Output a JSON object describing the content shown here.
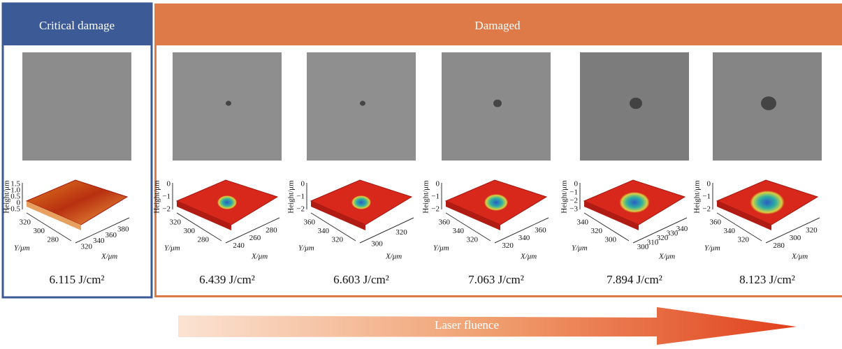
{
  "header": {
    "critical": "Critical damage",
    "damaged": "Damaged"
  },
  "arrow_label": "Laser fluence",
  "axis_labels": {
    "height": "Height/μm",
    "y": "Y/μm",
    "x": "X/μm"
  },
  "panels": [
    {
      "fluence": "6.115 J/cm²",
      "height_ticks": [
        "1.5",
        "1.0",
        "0.5",
        "0",
        "−0.5"
      ],
      "y_ticks": [
        "320",
        "300",
        "280"
      ],
      "x_ticks": [
        "320",
        "340",
        "360",
        "380"
      ]
    },
    {
      "fluence": "6.439 J/cm²",
      "height_ticks": [
        "0",
        "−1",
        "−2"
      ],
      "y_ticks": [
        "320",
        "300",
        "280"
      ],
      "x_ticks": [
        "240",
        "260",
        "280"
      ]
    },
    {
      "fluence": "6.603 J/cm²",
      "height_ticks": [
        "0",
        "−1",
        "−2"
      ],
      "y_ticks": [
        "360",
        "340",
        "320"
      ],
      "x_ticks": [
        "300",
        "320"
      ]
    },
    {
      "fluence": "7.063 J/cm²",
      "height_ticks": [
        "0",
        "−1",
        "−2"
      ],
      "y_ticks": [
        "360",
        "340",
        "320"
      ],
      "x_ticks": [
        "320",
        "340",
        "360"
      ]
    },
    {
      "fluence": "7.894 J/cm²",
      "height_ticks": [
        "0",
        "−1",
        "−2",
        "−3"
      ],
      "y_ticks": [
        "340",
        "320",
        "300"
      ],
      "x_ticks": [
        "300",
        "310",
        "320",
        "330",
        "340"
      ]
    },
    {
      "fluence": "8.123 J/cm²",
      "height_ticks": [
        "0",
        "−1",
        "−2"
      ],
      "y_ticks": [
        "360",
        "340",
        "320"
      ],
      "x_ticks": [
        "280",
        "300",
        "320"
      ]
    }
  ]
}
